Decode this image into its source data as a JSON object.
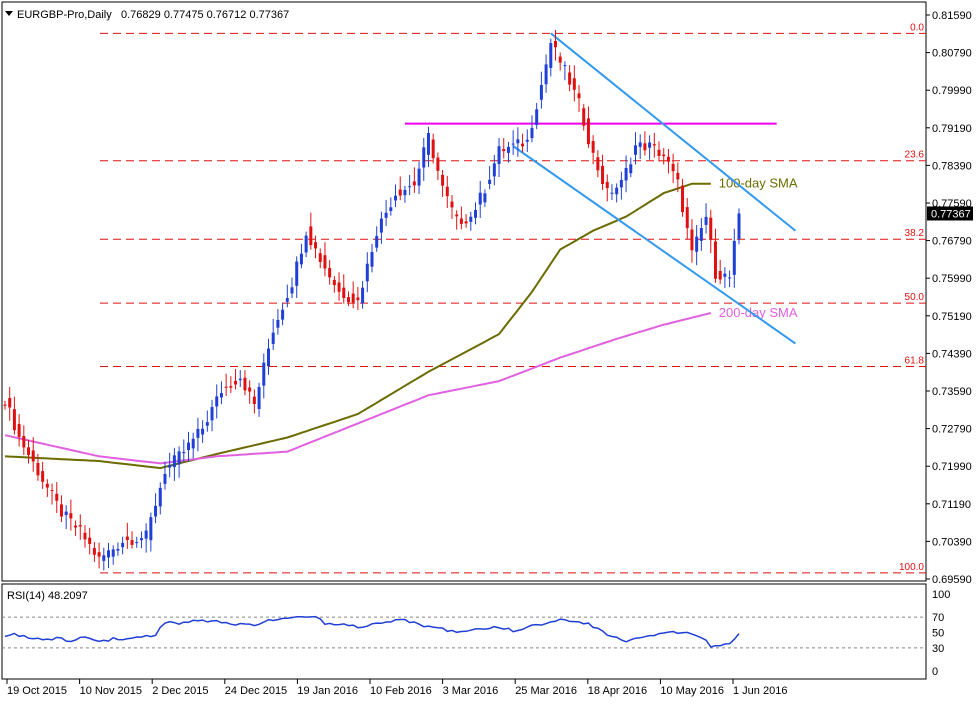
{
  "header": {
    "symbol": "EURGBP-Pro,Daily",
    "ohlc": "0.76829 0.77475 0.76712 0.77367"
  },
  "colors": {
    "bull": "#1f3fd6",
    "bear": "#e01010",
    "sma100": "#6b6b00",
    "sma200": "#e060e0",
    "channel": "#3399ee",
    "resistance": "#ee00ee",
    "fib": "#e01010",
    "rsi": "#1f3fd6",
    "price_tag_bg": "#000000"
  },
  "chart_data": [
    {
      "type": "candlestick",
      "title": "EURGBP-Pro,Daily",
      "ylim": [
        0.6959,
        0.8159
      ],
      "y_ticks": [
        "0.81590",
        "0.80790",
        "0.79990",
        "0.79190",
        "0.78390",
        "0.77590",
        "0.76790",
        "0.75990",
        "0.75190",
        "0.74390",
        "0.73590",
        "0.72790",
        "0.71990",
        "0.71190",
        "0.70390",
        "0.69590"
      ],
      "x_ticks": [
        "19 Oct 2015",
        "10 Nov 2015",
        "2 Dec 2015",
        "24 Dec 2015",
        "19 Jan 2016",
        "10 Feb 2016",
        "3 Mar 2016",
        "25 Mar 2016",
        "18 Apr 2016",
        "10 May 2016",
        "1 Jun 2016"
      ],
      "current_price": "0.77367",
      "anchors": [
        {
          "i": 0,
          "p": 0.734
        },
        {
          "i": 3,
          "p": 0.726
        },
        {
          "i": 8,
          "p": 0.717
        },
        {
          "i": 12,
          "p": 0.71
        },
        {
          "i": 16,
          "p": 0.706
        },
        {
          "i": 20,
          "p": 0.7
        },
        {
          "i": 25,
          "p": 0.704
        },
        {
          "i": 30,
          "p": 0.705
        },
        {
          "i": 34,
          "p": 0.719
        },
        {
          "i": 38,
          "p": 0.723
        },
        {
          "i": 42,
          "p": 0.728
        },
        {
          "i": 46,
          "p": 0.736
        },
        {
          "i": 50,
          "p": 0.739
        },
        {
          "i": 53,
          "p": 0.733
        },
        {
          "i": 57,
          "p": 0.749
        },
        {
          "i": 61,
          "p": 0.759
        },
        {
          "i": 64,
          "p": 0.77
        },
        {
          "i": 67,
          "p": 0.764
        },
        {
          "i": 71,
          "p": 0.757
        },
        {
          "i": 75,
          "p": 0.755
        },
        {
          "i": 79,
          "p": 0.77
        },
        {
          "i": 83,
          "p": 0.778
        },
        {
          "i": 87,
          "p": 0.78
        },
        {
          "i": 90,
          "p": 0.79
        },
        {
          "i": 93,
          "p": 0.779
        },
        {
          "i": 96,
          "p": 0.772
        },
        {
          "i": 99,
          "p": 0.773
        },
        {
          "i": 102,
          "p": 0.779
        },
        {
          "i": 105,
          "p": 0.787
        },
        {
          "i": 108,
          "p": 0.788
        },
        {
          "i": 111,
          "p": 0.789
        },
        {
          "i": 114,
          "p": 0.801
        },
        {
          "i": 116,
          "p": 0.81
        },
        {
          "i": 119,
          "p": 0.804
        },
        {
          "i": 122,
          "p": 0.797
        },
        {
          "i": 125,
          "p": 0.786
        },
        {
          "i": 128,
          "p": 0.778
        },
        {
          "i": 131,
          "p": 0.78
        },
        {
          "i": 134,
          "p": 0.788
        },
        {
          "i": 137,
          "p": 0.788
        },
        {
          "i": 140,
          "p": 0.786
        },
        {
          "i": 143,
          "p": 0.78
        },
        {
          "i": 146,
          "p": 0.765
        },
        {
          "i": 149,
          "p": 0.773
        },
        {
          "i": 151,
          "p": 0.761
        },
        {
          "i": 154,
          "p": 0.76
        },
        {
          "i": 156,
          "p": 0.7737
        }
      ],
      "series": [
        {
          "name": "100-day SMA",
          "label": "100-day SMA",
          "color": "#6b6b00",
          "x": [
            0,
            20,
            33,
            45,
            60,
            75,
            90,
            105,
            112,
            118,
            125,
            132,
            140,
            146,
            150
          ],
          "y": [
            0.722,
            0.721,
            0.7195,
            0.7225,
            0.726,
            0.731,
            0.74,
            0.748,
            0.757,
            0.766,
            0.77,
            0.773,
            0.778,
            0.78,
            0.78
          ]
        },
        {
          "name": "200-day SMA",
          "label": "200-day SMA",
          "color": "#e060e0",
          "x": [
            0,
            20,
            33,
            45,
            60,
            75,
            90,
            105,
            118,
            130,
            140,
            150
          ],
          "y": [
            0.7265,
            0.722,
            0.7205,
            0.722,
            0.723,
            0.729,
            0.735,
            0.738,
            0.743,
            0.747,
            0.75,
            0.7525
          ]
        }
      ],
      "fib_levels": [
        {
          "label": "0.0",
          "value": 0.812
        },
        {
          "label": "23.6",
          "value": 0.7849
        },
        {
          "label": "38.2",
          "value": 0.7682
        },
        {
          "label": "50.0",
          "value": 0.7546
        },
        {
          "label": "61.8",
          "value": 0.7411
        },
        {
          "label": "100.0",
          "value": 0.6972
        }
      ],
      "resistance": {
        "x": [
          85,
          164
        ],
        "y": 0.7928
      },
      "channel": [
        {
          "x": [
            116,
            168
          ],
          "y": [
            0.812,
            0.77
          ]
        },
        {
          "x": [
            108,
            168
          ],
          "y": [
            0.788,
            0.746
          ]
        }
      ]
    },
    {
      "type": "line",
      "title": "RSI(14) 48.2097",
      "ylim": [
        0,
        100
      ],
      "y_ticks": [
        "100",
        "70",
        "50",
        "30",
        "0"
      ],
      "levels": [
        70,
        30
      ],
      "series": [
        {
          "name": "RSI(14)",
          "color": "#1f3fd6",
          "x": [
            0,
            2,
            5,
            8,
            11,
            14,
            17,
            20,
            24,
            28,
            30,
            32,
            34,
            36,
            40,
            44,
            48,
            52,
            56,
            60,
            64,
            66,
            68,
            70,
            72,
            76,
            80,
            84,
            88,
            92,
            96,
            100,
            104,
            108,
            112,
            116,
            118,
            120,
            124,
            128,
            132,
            136,
            140,
            144,
            146,
            148,
            150,
            152,
            154,
            156
          ],
          "y": [
            47,
            48,
            43,
            41,
            42,
            40,
            44,
            39,
            42,
            44,
            46,
            47,
            63,
            62,
            65,
            66,
            61,
            59,
            65,
            70,
            72,
            70,
            62,
            61,
            60,
            57,
            62,
            67,
            60,
            55,
            51,
            53,
            57,
            53,
            58,
            64,
            67,
            65,
            62,
            48,
            39,
            43,
            48,
            51,
            49,
            45,
            33,
            32,
            36,
            48
          ]
        }
      ]
    }
  ]
}
